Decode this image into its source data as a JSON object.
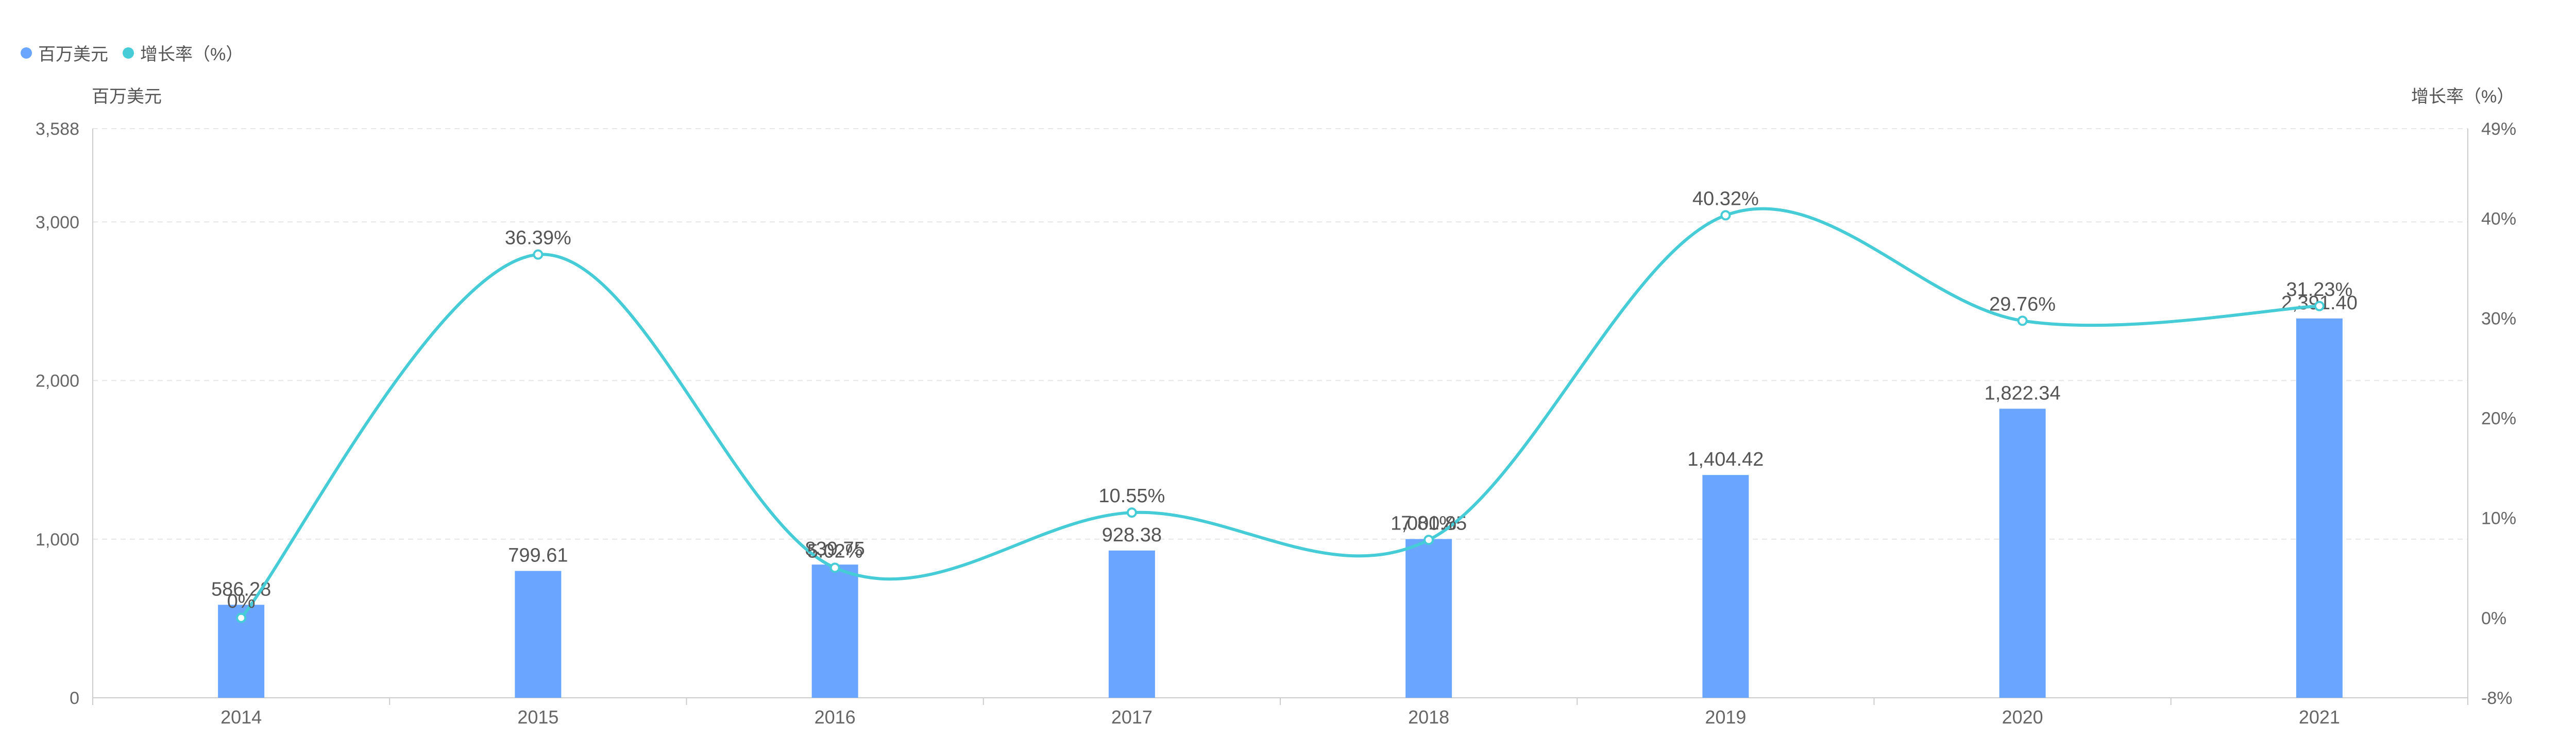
{
  "legend": {
    "bar_label": "百万美元",
    "line_label": "增长率（%）"
  },
  "colors": {
    "bar": "#6aa6ff",
    "line": "#45ccd6",
    "grid": "#e6e6e6",
    "axis_text": "#666666",
    "label_text": "#555555"
  },
  "chart_data": {
    "type": "bar",
    "categories": [
      "2014",
      "2015",
      "2016",
      "2017",
      "2018",
      "2019",
      "2020",
      "2021"
    ],
    "series": [
      {
        "name": "百万美元",
        "type": "bar",
        "axis": "left",
        "values": [
          586.28,
          799.61,
          839.75,
          928.38,
          1000.85,
          1404.42,
          1822.34,
          2391.4
        ],
        "value_labels": [
          "586.28",
          "799.61",
          "839.75",
          "928.38",
          "1,000.85",
          "1,404.42",
          "1,822.34",
          "2,391.40"
        ]
      },
      {
        "name": "增长率（%）",
        "type": "line",
        "smooth": true,
        "axis": "right",
        "values": [
          0,
          36.39,
          5.02,
          10.55,
          7.81,
          40.32,
          29.76,
          31.23
        ],
        "value_labels": [
          "0%",
          "36.39%",
          "5.02%",
          "10.55%",
          "7.81%",
          "40.32%",
          "29.76%",
          "31.23%"
        ]
      }
    ],
    "y_left": {
      "title": "百万美元",
      "range": [
        0,
        3588
      ],
      "ticks": [
        0,
        1000,
        2000,
        3000,
        3588
      ],
      "tick_labels": [
        "0",
        "1,000",
        "2,000",
        "3,000",
        "3,588"
      ]
    },
    "y_right": {
      "title": "增长率（%）",
      "range": [
        -8,
        49
      ],
      "ticks": [
        -8,
        0,
        10,
        20,
        30,
        40,
        49
      ],
      "tick_labels": [
        "-8%",
        "0%",
        "10%",
        "20%",
        "30%",
        "40%",
        "49%"
      ]
    },
    "grid": true,
    "legend_position": "top-left"
  }
}
